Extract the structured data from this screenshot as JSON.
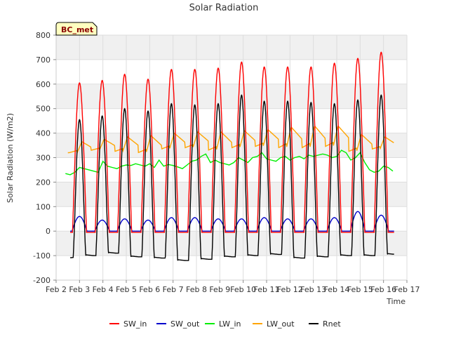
{
  "chart_data": {
    "type": "line",
    "title": "Solar Radiation",
    "xlabel": "Time",
    "ylabel": "Solar Radiation (W/m2)",
    "badge": "BC_met",
    "xlim": [
      2,
      17
    ],
    "ylim": [
      -200,
      800
    ],
    "x_ticks": [
      2,
      3,
      4,
      5,
      6,
      7,
      8,
      9,
      10,
      11,
      12,
      13,
      14,
      15,
      16,
      17
    ],
    "x_tick_labels": [
      "Feb 2",
      "Feb 3",
      "Feb 4",
      "Feb 5",
      "Feb 6",
      "Feb 7",
      "Feb 8",
      "Feb 9",
      "Feb 10",
      "Feb 11",
      "Feb 12",
      "Feb 13",
      "Feb 14",
      "Feb 15",
      "Feb 16",
      "Feb 17"
    ],
    "y_ticks": [
      -200,
      -100,
      0,
      100,
      200,
      300,
      400,
      500,
      600,
      700,
      800
    ],
    "grid": true,
    "legend_position": "bottom",
    "days": [
      2.6,
      3.6,
      4.6,
      5.6,
      6.6,
      7.6,
      8.6,
      9.6,
      10.6,
      11.6,
      12.6,
      13.6,
      14.6,
      15.6
    ],
    "series": [
      {
        "name": "SW_in",
        "color": "#ff0000",
        "baseline": -5,
        "peak_x": [
          3.0,
          3.97,
          4.93,
          5.93,
          6.93,
          7.93,
          8.93,
          9.93,
          10.9,
          11.9,
          12.9,
          13.9,
          14.9,
          15.9
        ],
        "peak_y": [
          605,
          615,
          640,
          620,
          660,
          660,
          665,
          690,
          670,
          670,
          670,
          685,
          705,
          730
        ]
      },
      {
        "name": "SW_out",
        "color": "#0000cc",
        "baseline": 0,
        "peak_x": [
          3.0,
          3.97,
          4.93,
          5.93,
          6.93,
          7.93,
          8.93,
          9.93,
          10.9,
          11.9,
          12.9,
          13.9,
          14.9,
          15.9
        ],
        "peak_y": [
          60,
          45,
          50,
          45,
          55,
          55,
          50,
          50,
          55,
          50,
          50,
          55,
          80,
          65
        ]
      },
      {
        "name": "LW_in",
        "color": "#00ee00",
        "x": [
          2.4,
          2.6,
          2.8,
          3.0,
          3.2,
          3.4,
          3.6,
          3.8,
          4.0,
          4.2,
          4.4,
          4.6,
          4.8,
          5.0,
          5.2,
          5.4,
          5.6,
          5.8,
          6.0,
          6.2,
          6.4,
          6.6,
          6.8,
          7.0,
          7.2,
          7.4,
          7.6,
          7.8,
          8.0,
          8.2,
          8.4,
          8.6,
          8.8,
          9.0,
          9.2,
          9.4,
          9.6,
          9.8,
          10.0,
          10.2,
          10.4,
          10.6,
          10.8,
          11.0,
          11.2,
          11.4,
          11.6,
          11.8,
          12.0,
          12.2,
          12.4,
          12.6,
          12.8,
          13.0,
          13.2,
          13.4,
          13.6,
          13.8,
          14.0,
          14.2,
          14.4,
          14.6,
          14.8,
          15.0,
          15.2,
          15.4,
          15.6,
          15.8,
          16.0,
          16.2,
          16.4
        ],
        "y": [
          235,
          230,
          240,
          260,
          255,
          250,
          245,
          240,
          285,
          265,
          260,
          255,
          265,
          270,
          268,
          275,
          270,
          265,
          275,
          260,
          290,
          265,
          272,
          268,
          262,
          255,
          270,
          285,
          290,
          305,
          315,
          280,
          290,
          280,
          275,
          270,
          280,
          300,
          290,
          280,
          300,
          305,
          320,
          295,
          290,
          285,
          300,
          305,
          290,
          300,
          305,
          295,
          310,
          305,
          310,
          315,
          310,
          300,
          305,
          330,
          320,
          290,
          300,
          320,
          280,
          250,
          240,
          245,
          265,
          260,
          245
        ]
      },
      {
        "name": "LW_out",
        "color": "#ffa500",
        "baseline": 330,
        "peak_x": [
          3.05,
          4.0,
          5.0,
          6.0,
          7.0,
          8.0,
          9.0,
          10.0,
          11.0,
          12.0,
          13.0,
          14.0,
          15.0,
          16.0
        ],
        "peak_y": [
          365,
          375,
          385,
          390,
          400,
          405,
          405,
          410,
          415,
          425,
          430,
          430,
          395,
          385
        ],
        "trough_y": [
          320,
          330,
          325,
          320,
          335,
          340,
          330,
          340,
          345,
          340,
          340,
          345,
          325,
          335
        ]
      },
      {
        "name": "Rnet",
        "color": "#000000",
        "baseline": -100,
        "peak_x": [
          3.0,
          3.97,
          4.93,
          5.93,
          6.93,
          7.93,
          8.93,
          9.93,
          10.9,
          11.9,
          12.9,
          13.9,
          14.9,
          15.9
        ],
        "peak_y": [
          455,
          470,
          500,
          490,
          520,
          515,
          520,
          555,
          530,
          530,
          525,
          520,
          535,
          555
        ],
        "trough_y": [
          -100,
          -90,
          -105,
          -110,
          -120,
          -115,
          -105,
          -100,
          -95,
          -110,
          -105,
          -100,
          -100,
          -95
        ]
      }
    ]
  }
}
